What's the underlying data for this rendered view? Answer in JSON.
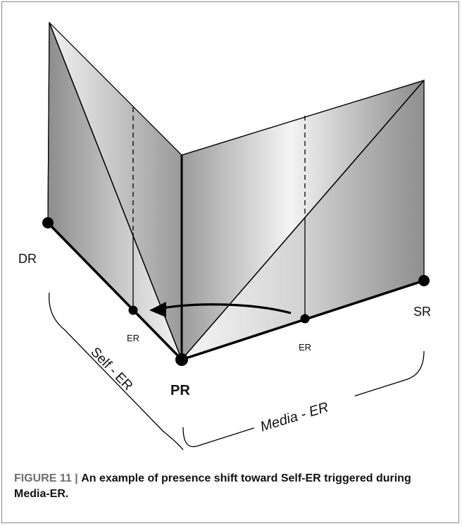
{
  "diagram": {
    "labels": {
      "dr": "DR",
      "pr": "PR",
      "sr": "SR",
      "er_left": "ER",
      "er_right": "ER",
      "self_er": "Self - ER",
      "media_er": "Media - ER"
    },
    "colors": {
      "panel_dark": "#8c8c8c",
      "panel_light": "#f4f4f4",
      "stroke": "#000000"
    }
  },
  "caption": {
    "figure_label": "FIGURE 11",
    "separator": "|",
    "text": "An example of presence shift toward Self-ER triggered during Media-ER."
  }
}
